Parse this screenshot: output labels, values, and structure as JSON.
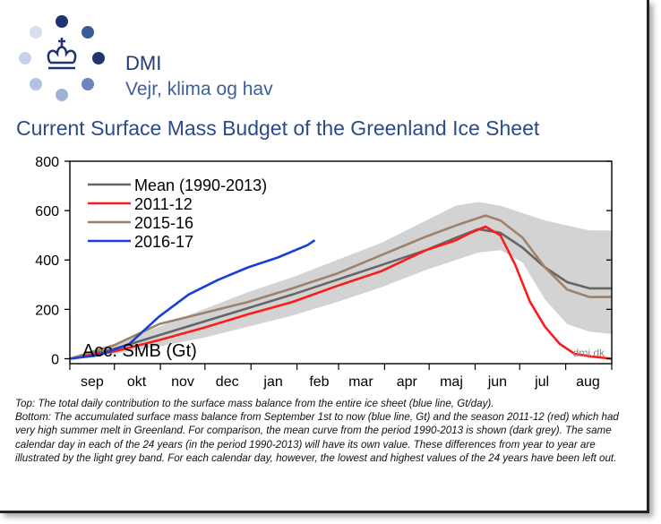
{
  "brand": {
    "name": "DMI",
    "tagline": "Vejr, klima og hav"
  },
  "colors": {
    "brand": "#2a4a8c",
    "mean": "#666666",
    "s2011": "#ff1a1a",
    "s2015": "#9e8168",
    "s2016": "#1a3ed8",
    "band": "#d3d3d3"
  },
  "chart_data": {
    "type": "line",
    "title": "Current Surface Mass Budget of the Greenland Ice Sheet",
    "ylabel": "Acc. SMB (Gt)",
    "watermark": "dmi.dk",
    "ylim": [
      -20,
      800
    ],
    "yticks": [
      0,
      200,
      400,
      600,
      800
    ],
    "xlim": [
      0,
      365
    ],
    "months": [
      {
        "label": "sep",
        "day": 15
      },
      {
        "label": "okt",
        "day": 45
      },
      {
        "label": "nov",
        "day": 76
      },
      {
        "label": "dec",
        "day": 106
      },
      {
        "label": "jan",
        "day": 137
      },
      {
        "label": "feb",
        "day": 168
      },
      {
        "label": "mar",
        "day": 196
      },
      {
        "label": "apr",
        "day": 227
      },
      {
        "label": "maj",
        "day": 257
      },
      {
        "label": "jun",
        "day": 288
      },
      {
        "label": "jul",
        "day": 318
      },
      {
        "label": "aug",
        "day": 349
      }
    ],
    "legend_position": "top-left",
    "band": {
      "x": [
        0,
        30,
        60,
        90,
        120,
        150,
        180,
        210,
        240,
        260,
        275,
        290,
        305,
        320,
        335,
        350,
        365
      ],
      "lower": [
        0,
        20,
        50,
        85,
        130,
        175,
        230,
        290,
        360,
        400,
        430,
        440,
        390,
        240,
        140,
        110,
        100
      ],
      "upper": [
        0,
        60,
        130,
        200,
        270,
        330,
        400,
        470,
        560,
        620,
        635,
        620,
        590,
        560,
        540,
        520,
        520
      ]
    },
    "series": [
      {
        "name": "Mean (1990-2013)",
        "color": "#666666",
        "x": [
          0,
          30,
          60,
          90,
          120,
          150,
          180,
          210,
          240,
          260,
          275,
          290,
          305,
          320,
          335,
          350,
          365
        ],
        "y": [
          0,
          40,
          95,
          150,
          205,
          260,
          320,
          380,
          440,
          490,
          525,
          510,
          450,
          370,
          310,
          285,
          285
        ]
      },
      {
        "name": "2011-12",
        "color": "#ff1a1a",
        "x": [
          0,
          30,
          60,
          90,
          120,
          150,
          180,
          210,
          240,
          260,
          270,
          280,
          290,
          300,
          310,
          320,
          330,
          340,
          350,
          365
        ],
        "y": [
          0,
          30,
          75,
          125,
          180,
          230,
          295,
          355,
          440,
          480,
          510,
          535,
          500,
          380,
          230,
          130,
          60,
          20,
          10,
          0
        ]
      },
      {
        "name": "2015-16",
        "color": "#9e8168",
        "x": [
          0,
          30,
          60,
          90,
          120,
          150,
          180,
          210,
          240,
          260,
          270,
          280,
          290,
          305,
          320,
          335,
          350,
          365
        ],
        "y": [
          0,
          55,
          140,
          185,
          230,
          285,
          345,
          420,
          495,
          540,
          560,
          580,
          560,
          490,
          370,
          280,
          250,
          250
        ]
      },
      {
        "name": "2016-17",
        "color": "#1a3ed8",
        "x": [
          0,
          20,
          40,
          60,
          80,
          100,
          120,
          140,
          160,
          165
        ],
        "y": [
          0,
          15,
          60,
          170,
          260,
          320,
          370,
          410,
          460,
          480
        ]
      }
    ]
  },
  "caption": {
    "top": "Top: The total daily contribution to the surface mass balance from the entire ice sheet (blue line, Gt/day).",
    "bottom": "Bottom: The accumulated surface mass balance from September 1st to now (blue line, Gt) and the season 2011-12 (red) which had very high summer melt in Greenland. For comparison, the mean curve from the period 1990-2013 is shown (dark grey). The same calendar day in each of the 24 years (in the period 1990-2013) will have its own value. These differences from year to year are illustrated by the light grey band. For each calendar day, however, the lowest and highest values of the 24 years have been left out."
  }
}
